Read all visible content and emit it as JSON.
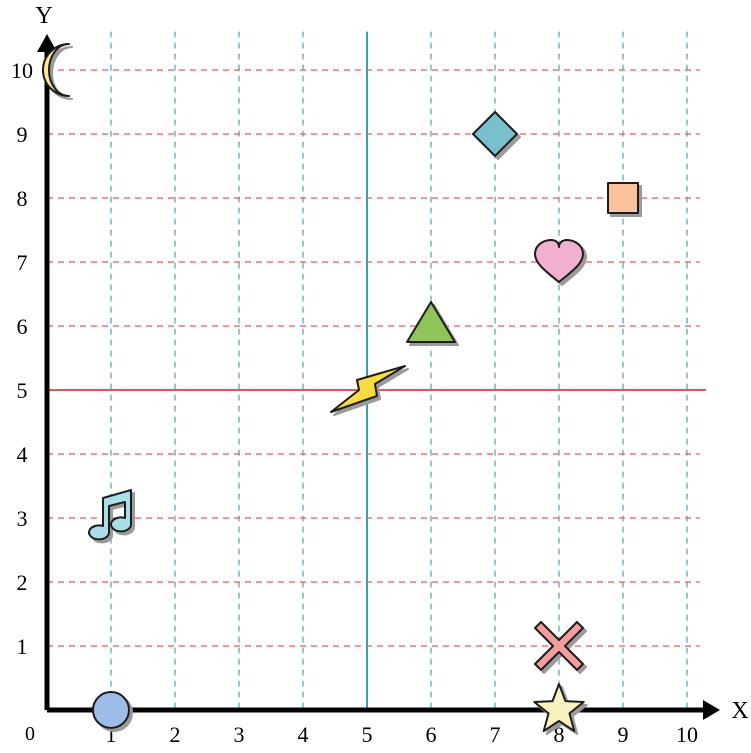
{
  "axes": {
    "x_label": "X",
    "y_label": "Y",
    "origin_label": "0",
    "x_ticks": [
      "1",
      "2",
      "3",
      "4",
      "5",
      "6",
      "7",
      "8",
      "9",
      "10"
    ],
    "y_ticks": [
      "1",
      "2",
      "3",
      "4",
      "5",
      "6",
      "7",
      "8",
      "9",
      "10"
    ],
    "x_range": [
      0,
      10
    ],
    "y_range": [
      0,
      10
    ]
  },
  "grid": {
    "x_lines": [
      1,
      2,
      3,
      4,
      6,
      7,
      8,
      9,
      10
    ],
    "y_lines": [
      1,
      2,
      3,
      4,
      6,
      7,
      8,
      9,
      10
    ]
  },
  "reference_lines": {
    "vertical_x": 5,
    "horizontal_y": 5
  },
  "shapes": [
    {
      "name": "moon",
      "x": 0,
      "y": 10,
      "color": "#FBE49B"
    },
    {
      "name": "diamond",
      "x": 7,
      "y": 9,
      "color": "#78C0CC"
    },
    {
      "name": "square",
      "x": 9,
      "y": 8,
      "color": "#FAC39C"
    },
    {
      "name": "heart",
      "x": 8,
      "y": 7,
      "color": "#F3AFCF"
    },
    {
      "name": "triangle",
      "x": 6,
      "y": 6,
      "color": "#8FC458"
    },
    {
      "name": "lightning",
      "x": 5,
      "y": 5,
      "color": "#F9DB43"
    },
    {
      "name": "music-note",
      "x": 1,
      "y": 3,
      "color": "#A9DDE8"
    },
    {
      "name": "cross",
      "x": 8,
      "y": 1,
      "color": "#F39D9D"
    },
    {
      "name": "circle",
      "x": 1,
      "y": 0,
      "color": "#9DBCE8"
    },
    {
      "name": "star",
      "x": 8,
      "y": 0,
      "color": "#FBF2C1"
    }
  ],
  "colors": {
    "grid_dash": "#E45B63",
    "grid_dash_vertical": "#5BA8C9",
    "ref_h": "#E0565C",
    "ref_v": "#3C9FAE"
  }
}
